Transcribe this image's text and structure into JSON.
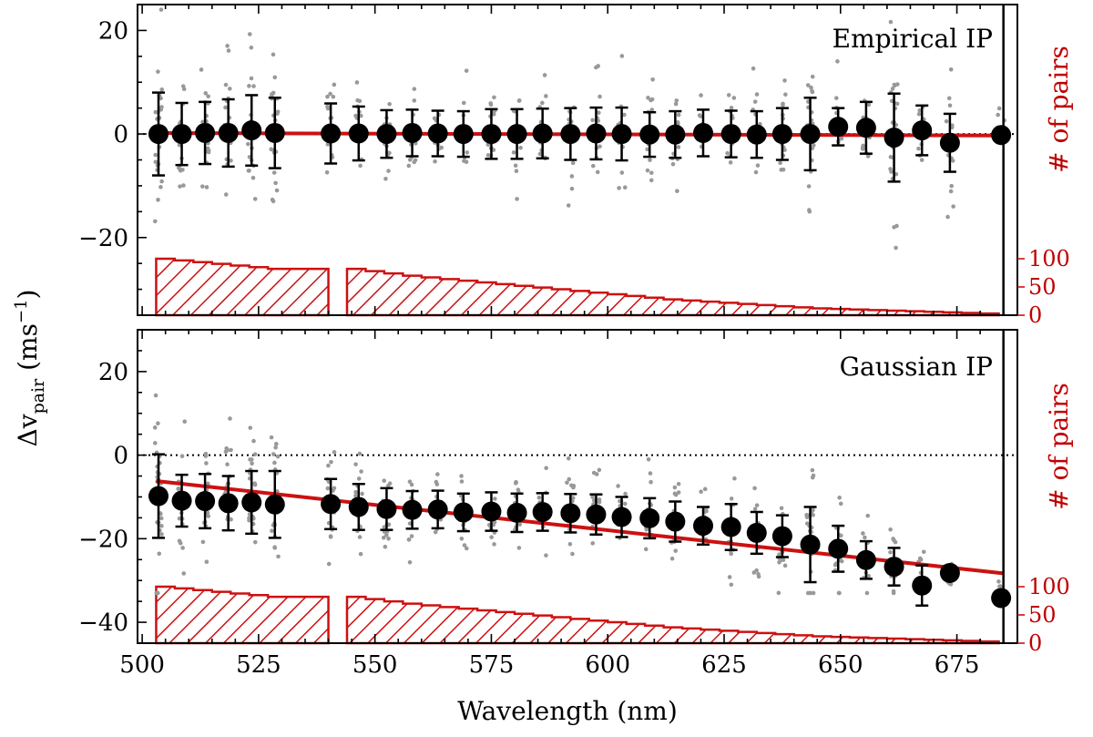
{
  "figure": {
    "xlabel": "Wavelength (nm)",
    "ylabel_main": "Δv",
    "ylabel_sub": "pair",
    "ylabel_unit_open": " (ms",
    "ylabel_unit_exp": "−1",
    "ylabel_unit_close": ")",
    "hist_ylabel": "# of pairs",
    "colors": {
      "fit": "#cc1111",
      "hist": "#cc1111",
      "points": "#000000",
      "scatter": "#999999"
    }
  },
  "chart_data": [
    {
      "type": "scatter",
      "title": "Empirical IP",
      "xlim": [
        499,
        688
      ],
      "ylim": [
        -35,
        25
      ],
      "x_ticks": [
        500,
        525,
        550,
        575,
        600,
        625,
        650,
        675
      ],
      "x_tick_labels": [
        "500",
        "525",
        "550",
        "575",
        "600",
        "625",
        "650",
        "675"
      ],
      "y_ticks": [
        20,
        0,
        -20
      ],
      "y_tick_labels": [
        "20",
        "0",
        "−20"
      ],
      "hist_ticks": [
        0,
        50,
        100
      ],
      "hist_tick_labels": [
        "0",
        "50",
        "100"
      ],
      "zero_line": true,
      "fit_line": {
        "x": [
          503,
          685
        ],
        "y": [
          0.2,
          -0.3
        ]
      },
      "binned": {
        "x": [
          503.5,
          508.5,
          513.5,
          518.5,
          523.5,
          528.5,
          540.5,
          546.5,
          552.5,
          558.0,
          563.5,
          569.0,
          575.0,
          580.5,
          586.0,
          592.0,
          597.5,
          603.0,
          609.0,
          614.5,
          620.5,
          626.5,
          632.0,
          637.5,
          643.5,
          649.5,
          655.5,
          661.5,
          667.5,
          673.5,
          684.5
        ],
        "y": [
          0.0,
          0.0,
          0.2,
          0.2,
          0.7,
          0.2,
          0.1,
          0.1,
          0.0,
          0.2,
          0.1,
          0.0,
          0.0,
          0.0,
          0.1,
          0.0,
          0.1,
          0.0,
          -0.1,
          -0.1,
          0.2,
          0.0,
          -0.1,
          0.0,
          0.0,
          1.4,
          1.2,
          -0.7,
          0.7,
          -1.7,
          -0.2
        ],
        "err": [
          8.0,
          6.0,
          6.0,
          6.5,
          6.8,
          6.8,
          5.8,
          5.2,
          4.6,
          4.5,
          4.4,
          4.4,
          4.8,
          4.8,
          4.8,
          5.0,
          5.0,
          5.1,
          4.3,
          4.5,
          4.5,
          4.5,
          4.5,
          5.0,
          7.0,
          3.6,
          5.0,
          8.5,
          4.8,
          5.6,
          0.0
        ]
      },
      "hist": {
        "x": [
          503,
          507,
          511,
          515,
          519,
          523,
          527,
          544,
          548,
          552,
          556,
          560,
          564,
          568,
          572,
          576,
          580,
          584,
          588,
          592,
          596,
          600,
          604,
          608,
          612,
          616,
          620,
          624,
          628,
          632,
          636,
          640,
          644,
          648,
          652,
          656,
          660,
          664,
          668,
          672,
          676,
          680
        ],
        "counts": [
          100,
          97,
          94,
          91,
          88,
          85,
          82,
          82,
          78,
          74,
          70,
          67,
          64,
          61,
          58,
          55,
          52,
          49,
          46,
          43,
          40,
          37,
          34,
          31,
          28,
          26,
          24,
          22,
          20,
          18,
          16,
          14,
          12,
          11,
          10,
          9,
          8,
          7,
          6,
          5,
          4,
          3
        ]
      }
    },
    {
      "type": "scatter",
      "title": "Gaussian IP",
      "xlim": [
        499,
        688
      ],
      "ylim": [
        -45,
        30
      ],
      "x_ticks": [
        500,
        525,
        550,
        575,
        600,
        625,
        650,
        675
      ],
      "x_tick_labels": [
        "500",
        "525",
        "550",
        "575",
        "600",
        "625",
        "650",
        "675"
      ],
      "y_ticks": [
        20,
        0,
        -20,
        -40
      ],
      "y_tick_labels": [
        "20",
        "0",
        "−20",
        "−40"
      ],
      "hist_ticks": [
        0,
        50,
        100
      ],
      "hist_tick_labels": [
        "0",
        "50",
        "100"
      ],
      "zero_line": true,
      "fit_line": {
        "x": [
          503,
          685
        ],
        "y": [
          -6.2,
          -28.3
        ]
      },
      "binned": {
        "x": [
          503.5,
          508.5,
          513.5,
          518.5,
          523.5,
          528.5,
          540.5,
          546.5,
          552.5,
          558.0,
          563.5,
          569.0,
          575.0,
          580.5,
          586.0,
          592.0,
          597.5,
          603.0,
          609.0,
          614.5,
          620.5,
          626.5,
          632.0,
          637.5,
          643.5,
          649.5,
          655.5,
          661.5,
          667.5,
          673.5,
          684.5
        ],
        "y": [
          -9.8,
          -10.9,
          -11.0,
          -11.5,
          -11.3,
          -11.8,
          -11.7,
          -12.4,
          -12.9,
          -13.1,
          -13.0,
          -13.7,
          -13.5,
          -13.8,
          -13.6,
          -13.9,
          -14.2,
          -14.8,
          -15.1,
          -15.9,
          -16.9,
          -17.2,
          -18.6,
          -19.4,
          -21.4,
          -22.4,
          -25.1,
          -26.7,
          -31.2,
          -28.2,
          -34.2
        ],
        "err": [
          10.0,
          6.2,
          6.5,
          6.5,
          7.5,
          8.0,
          6.0,
          5.5,
          5.0,
          4.5,
          4.5,
          4.5,
          4.6,
          4.6,
          4.5,
          4.6,
          4.8,
          4.8,
          4.8,
          4.8,
          4.5,
          5.5,
          5.0,
          5.0,
          9.0,
          5.5,
          4.5,
          4.5,
          4.8,
          0.0,
          0.0
        ]
      },
      "hist": {
        "x": [
          503,
          507,
          511,
          515,
          519,
          523,
          527,
          544,
          548,
          552,
          556,
          560,
          564,
          568,
          572,
          576,
          580,
          584,
          588,
          592,
          596,
          600,
          604,
          608,
          612,
          616,
          620,
          624,
          628,
          632,
          636,
          640,
          644,
          648,
          652,
          656,
          660,
          664,
          668,
          672,
          676,
          680
        ],
        "counts": [
          100,
          97,
          94,
          91,
          88,
          85,
          82,
          82,
          78,
          74,
          70,
          67,
          64,
          61,
          58,
          55,
          52,
          49,
          46,
          43,
          40,
          37,
          34,
          31,
          28,
          26,
          24,
          22,
          20,
          18,
          16,
          14,
          12,
          11,
          10,
          9,
          8,
          7,
          6,
          5,
          4,
          3
        ]
      }
    }
  ]
}
